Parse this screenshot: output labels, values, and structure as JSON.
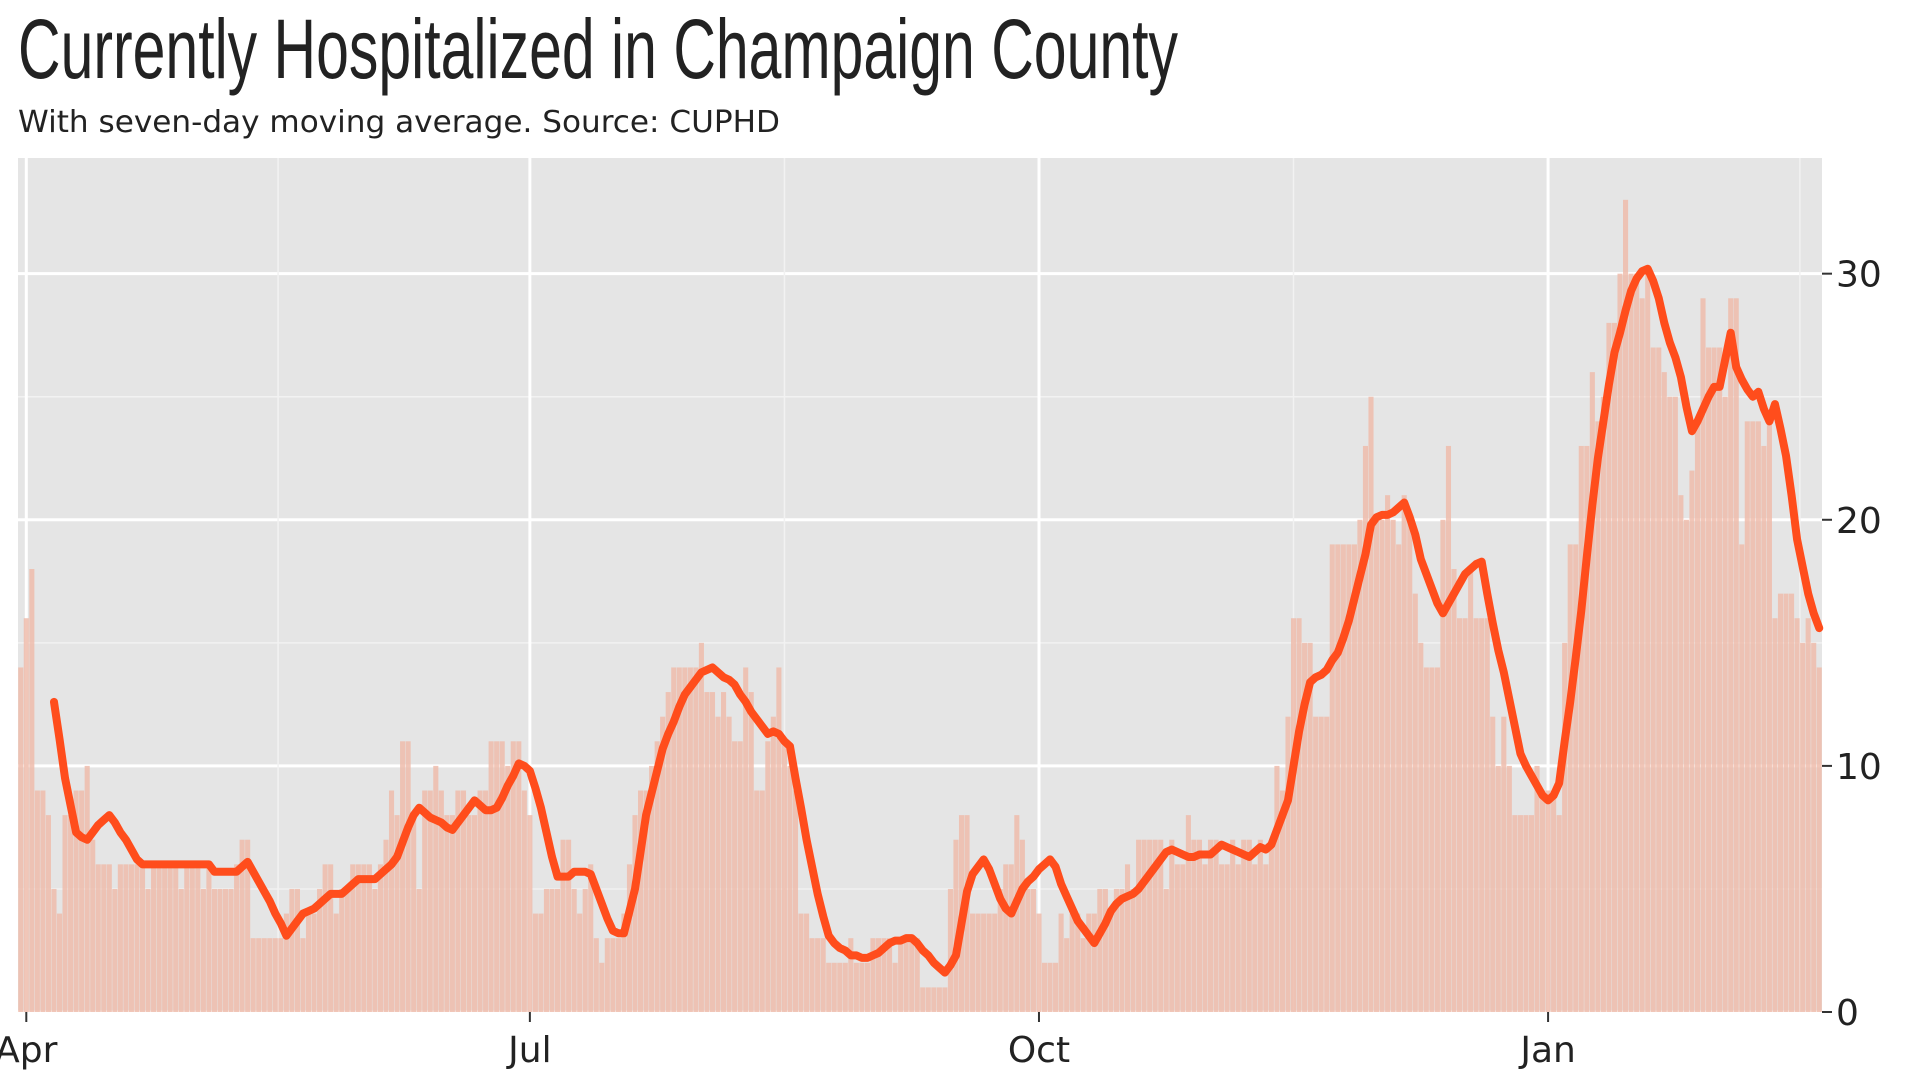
{
  "chart_data": {
    "type": "bar-line",
    "title": "Currently Hospitalized in Champaign County",
    "subtitle": "With seven-day moving average. Source: CUPHD",
    "categories": [
      null,
      "Apr",
      null,
      null,
      null,
      null,
      null,
      null,
      null,
      null,
      null,
      null,
      null,
      null,
      null,
      null,
      null,
      null,
      null,
      null,
      null,
      null,
      null,
      null,
      null,
      null,
      null,
      null,
      null,
      null,
      null,
      null,
      null,
      null,
      null,
      null,
      null,
      null,
      null,
      null,
      null,
      null,
      null,
      null,
      null,
      null,
      null,
      null,
      null,
      null,
      null,
      null,
      null,
      null,
      null,
      null,
      null,
      null,
      null,
      null,
      null,
      null,
      null,
      null,
      null,
      null,
      null,
      null,
      null,
      null,
      null,
      null,
      null,
      null,
      null,
      null,
      null,
      null,
      null,
      null,
      null,
      null,
      null,
      null,
      null,
      null,
      null,
      null,
      null,
      null,
      null,
      null,
      "Jul",
      null,
      null,
      null,
      null,
      null,
      null,
      null,
      null,
      null,
      null,
      null,
      null,
      null,
      null,
      null,
      null,
      null,
      null,
      null,
      null,
      null,
      null,
      null,
      null,
      null,
      null,
      null,
      null,
      null,
      null,
      null,
      null,
      null,
      null,
      null,
      null,
      null,
      null,
      null,
      null,
      null,
      null,
      null,
      null,
      null,
      null,
      null,
      null,
      null,
      null,
      null,
      null,
      null,
      null,
      null,
      null,
      null,
      null,
      null,
      null,
      null,
      null,
      null,
      null,
      null,
      null,
      null,
      null,
      null,
      null,
      null,
      null,
      null,
      null,
      null,
      null,
      null,
      null,
      null,
      null,
      null,
      null,
      null,
      null,
      null,
      null,
      null,
      null,
      null,
      null,
      null,
      "Oct",
      null,
      null,
      null,
      null,
      null,
      null,
      null,
      null,
      null,
      null,
      null,
      null,
      null,
      null,
      null,
      null,
      null,
      null,
      null,
      null,
      null,
      null,
      null,
      null,
      null,
      null,
      null,
      null,
      null,
      null,
      null,
      null,
      null,
      null,
      null,
      null,
      null,
      null,
      null,
      null,
      null,
      null,
      null,
      null,
      null,
      null,
      null,
      null,
      null,
      null,
      null,
      null,
      null,
      null,
      null,
      null,
      null,
      null,
      null,
      null,
      null,
      null,
      null,
      null,
      null,
      null,
      null,
      null,
      null,
      null,
      null,
      null,
      null,
      null,
      null,
      null,
      null,
      null,
      null,
      null,
      null,
      null,
      null,
      null,
      null,
      null,
      null,
      null,
      null,
      null,
      null,
      "Jan",
      null,
      null,
      null,
      null,
      null,
      null,
      null,
      null,
      null,
      null,
      null,
      null,
      null,
      null,
      null,
      null,
      null,
      null,
      null,
      null,
      null,
      null,
      null,
      null,
      null,
      null,
      null,
      null,
      null,
      null,
      null,
      null,
      null,
      null,
      null,
      null,
      null,
      null,
      null,
      null,
      null,
      null,
      null,
      null,
      null,
      null,
      null,
      null,
      null
    ],
    "series": [
      {
        "type": "bar",
        "color": "#efbcab",
        "values": [
          14,
          16,
          18,
          9,
          9,
          8,
          5,
          4,
          8,
          8,
          9,
          9,
          10,
          7,
          6,
          6,
          6,
          5,
          6,
          6,
          6,
          6,
          6,
          5,
          6,
          6,
          6,
          6,
          6,
          5,
          6,
          6,
          6,
          5,
          6,
          5,
          5,
          5,
          5,
          6,
          7,
          7,
          3,
          3,
          3,
          3,
          3,
          3,
          4,
          5,
          5,
          3,
          4,
          4,
          5,
          6,
          6,
          4,
          5,
          5,
          6,
          6,
          6,
          6,
          5,
          6,
          7,
          9,
          8,
          11,
          11,
          8,
          5,
          9,
          9,
          10,
          9,
          8,
          8,
          9,
          9,
          8,
          8,
          9,
          9,
          11,
          11,
          11,
          10,
          11,
          11,
          9,
          8,
          4,
          4,
          5,
          5,
          5,
          7,
          7,
          5,
          4,
          5,
          6,
          3,
          2,
          3,
          3,
          3,
          4,
          6,
          8,
          9,
          9,
          10,
          11,
          12,
          13,
          14,
          14,
          14,
          14,
          14,
          15,
          13,
          13,
          12,
          13,
          12,
          11,
          11,
          14,
          13,
          9,
          9,
          11,
          12,
          14,
          11,
          10,
          9,
          4,
          4,
          3,
          3,
          3,
          2,
          2,
          2,
          2,
          3,
          2,
          2,
          2,
          3,
          3,
          3,
          3,
          2,
          3,
          3,
          3,
          3,
          1,
          1,
          1,
          1,
          1,
          5,
          7,
          8,
          8,
          4,
          4,
          4,
          4,
          4,
          5,
          6,
          6,
          8,
          7,
          5,
          5,
          4,
          2,
          2,
          2,
          4,
          3,
          4,
          4,
          3,
          4,
          4,
          5,
          5,
          4,
          5,
          5,
          6,
          5,
          7,
          7,
          7,
          7,
          7,
          5,
          7,
          6,
          6,
          8,
          7,
          7,
          6,
          7,
          7,
          6,
          6,
          7,
          6,
          7,
          7,
          6,
          7,
          6,
          7,
          10,
          9,
          12,
          16,
          16,
          15,
          15,
          12,
          12,
          12,
          19,
          19,
          19,
          19,
          19,
          20,
          23,
          25,
          20,
          20,
          21,
          20,
          19,
          21,
          20,
          17,
          15,
          14,
          14,
          14,
          20,
          23,
          18,
          16,
          16,
          18,
          16,
          16,
          16,
          12,
          10,
          12,
          10,
          8,
          8,
          8,
          8,
          10,
          9,
          9,
          9,
          8,
          15,
          19,
          19,
          23,
          23,
          26,
          24,
          25,
          28,
          28,
          30,
          33,
          30,
          30,
          29,
          30,
          27,
          27,
          26,
          25,
          25,
          21,
          20,
          22,
          24,
          29,
          27,
          27,
          27,
          25,
          29,
          29,
          19,
          24,
          24,
          24,
          23,
          24,
          16,
          17,
          17,
          17,
          16,
          15,
          16,
          15,
          14
        ]
      },
      {
        "type": "line",
        "color": "#ff4d1c",
        "values": [
          null,
          null,
          null,
          null,
          null,
          null,
          12.6,
          11.1,
          9.5,
          8.4,
          7.3,
          7.1,
          7.0,
          7.3,
          7.6,
          7.8,
          8.0,
          7.7,
          7.3,
          7.0,
          6.6,
          6.2,
          6.0,
          6,
          6,
          6,
          6,
          6,
          6,
          6,
          6,
          6,
          6,
          6,
          6.0,
          5.7,
          5.7,
          5.7,
          5.7,
          5.7,
          5.9,
          6.1,
          5.7,
          5.3,
          4.9,
          4.5,
          4.0,
          3.6,
          3.1,
          3.4,
          3.7,
          4.0,
          4.1,
          4.2,
          4.4,
          4.6,
          4.8,
          4.8,
          4.8,
          5.0,
          5.2,
          5.4,
          5.4,
          5.4,
          5.4,
          5.6,
          5.8,
          6.0,
          6.3,
          6.9,
          7.5,
          8.0,
          8.3,
          8.1,
          7.9,
          7.8,
          7.7,
          7.5,
          7.4,
          7.7,
          8.0,
          8.3,
          8.6,
          8.4,
          8.2,
          8.2,
          8.3,
          8.7,
          9.2,
          9.6,
          10.1,
          10.0,
          9.8,
          9.1,
          8.3,
          7.3,
          6.3,
          5.5,
          5.5,
          5.5,
          5.7,
          5.7,
          5.7,
          5.6,
          5.0,
          4.4,
          3.8,
          3.3,
          3.2,
          3.2,
          4.1,
          5.0,
          6.5,
          8.0,
          8.9,
          9.8,
          10.7,
          11.3,
          11.8,
          12.4,
          12.9,
          13.2,
          13.5,
          13.8,
          13.9,
          14.0,
          13.8,
          13.6,
          13.5,
          13.3,
          12.9,
          12.6,
          12.2,
          11.9,
          11.6,
          11.3,
          11.4,
          11.3,
          11.0,
          10.8,
          9.5,
          8.3,
          7.0,
          5.9,
          4.8,
          3.9,
          3.1,
          2.8,
          2.6,
          2.5,
          2.3,
          2.3,
          2.2,
          2.2,
          2.3,
          2.4,
          2.6,
          2.8,
          2.9,
          2.9,
          3.0,
          3.0,
          2.8,
          2.5,
          2.3,
          2.0,
          1.8,
          1.6,
          1.9,
          2.3,
          3.6,
          4.9,
          5.6,
          5.9,
          6.2,
          5.8,
          5.2,
          4.6,
          4.2,
          4.0,
          4.5,
          5.0,
          5.3,
          5.5,
          5.8,
          6.0,
          6.2,
          5.9,
          5.2,
          4.7,
          4.2,
          3.7,
          3.4,
          3.1,
          2.8,
          3.2,
          3.6,
          4.1,
          4.4,
          4.6,
          4.7,
          4.8,
          5.0,
          5.3,
          5.6,
          5.9,
          6.2,
          6.5,
          6.6,
          6.5,
          6.4,
          6.3,
          6.3,
          6.4,
          6.4,
          6.4,
          6.6,
          6.8,
          6.7,
          6.6,
          6.5,
          6.4,
          6.3,
          6.5,
          6.7,
          6.6,
          6.8,
          7.4,
          8.0,
          8.6,
          10.0,
          11.4,
          12.5,
          13.4,
          13.6,
          13.7,
          13.9,
          14.3,
          14.6,
          15.2,
          15.9,
          16.8,
          17.7,
          18.6,
          19.8,
          20.1,
          20.2,
          20.2,
          20.3,
          20.5,
          20.7,
          20.1,
          19.4,
          18.4,
          17.8,
          17.2,
          16.6,
          16.2,
          16.6,
          17.0,
          17.4,
          17.8,
          18.0,
          18.2,
          18.3,
          17.0,
          15.8,
          14.7,
          13.8,
          12.7,
          11.6,
          10.5,
          10.0,
          9.6,
          9.2,
          8.8,
          8.6,
          8.8,
          9.3,
          11.0,
          12.6,
          14.4,
          16.3,
          18.5,
          20.6,
          22.5,
          24.0,
          25.5,
          26.8,
          27.6,
          28.5,
          29.3,
          29.8,
          30.1,
          30.2,
          29.7,
          29.0,
          28.0,
          27.2,
          26.6,
          25.8,
          24.6,
          23.6,
          24.0,
          24.5,
          25.0,
          25.4,
          25.4,
          26.5,
          27.6,
          26.2,
          25.7,
          25.3,
          25.0,
          25.2,
          24.5,
          24.0,
          24.7,
          23.7,
          22.6,
          21.0,
          19.2,
          18.1,
          17.0,
          16.2,
          15.6
        ]
      }
    ],
    "ylim": [
      0,
      34.7
    ],
    "yticks": [
      0,
      10,
      20,
      30
    ],
    "y_axis_side": "right",
    "grid": true
  }
}
